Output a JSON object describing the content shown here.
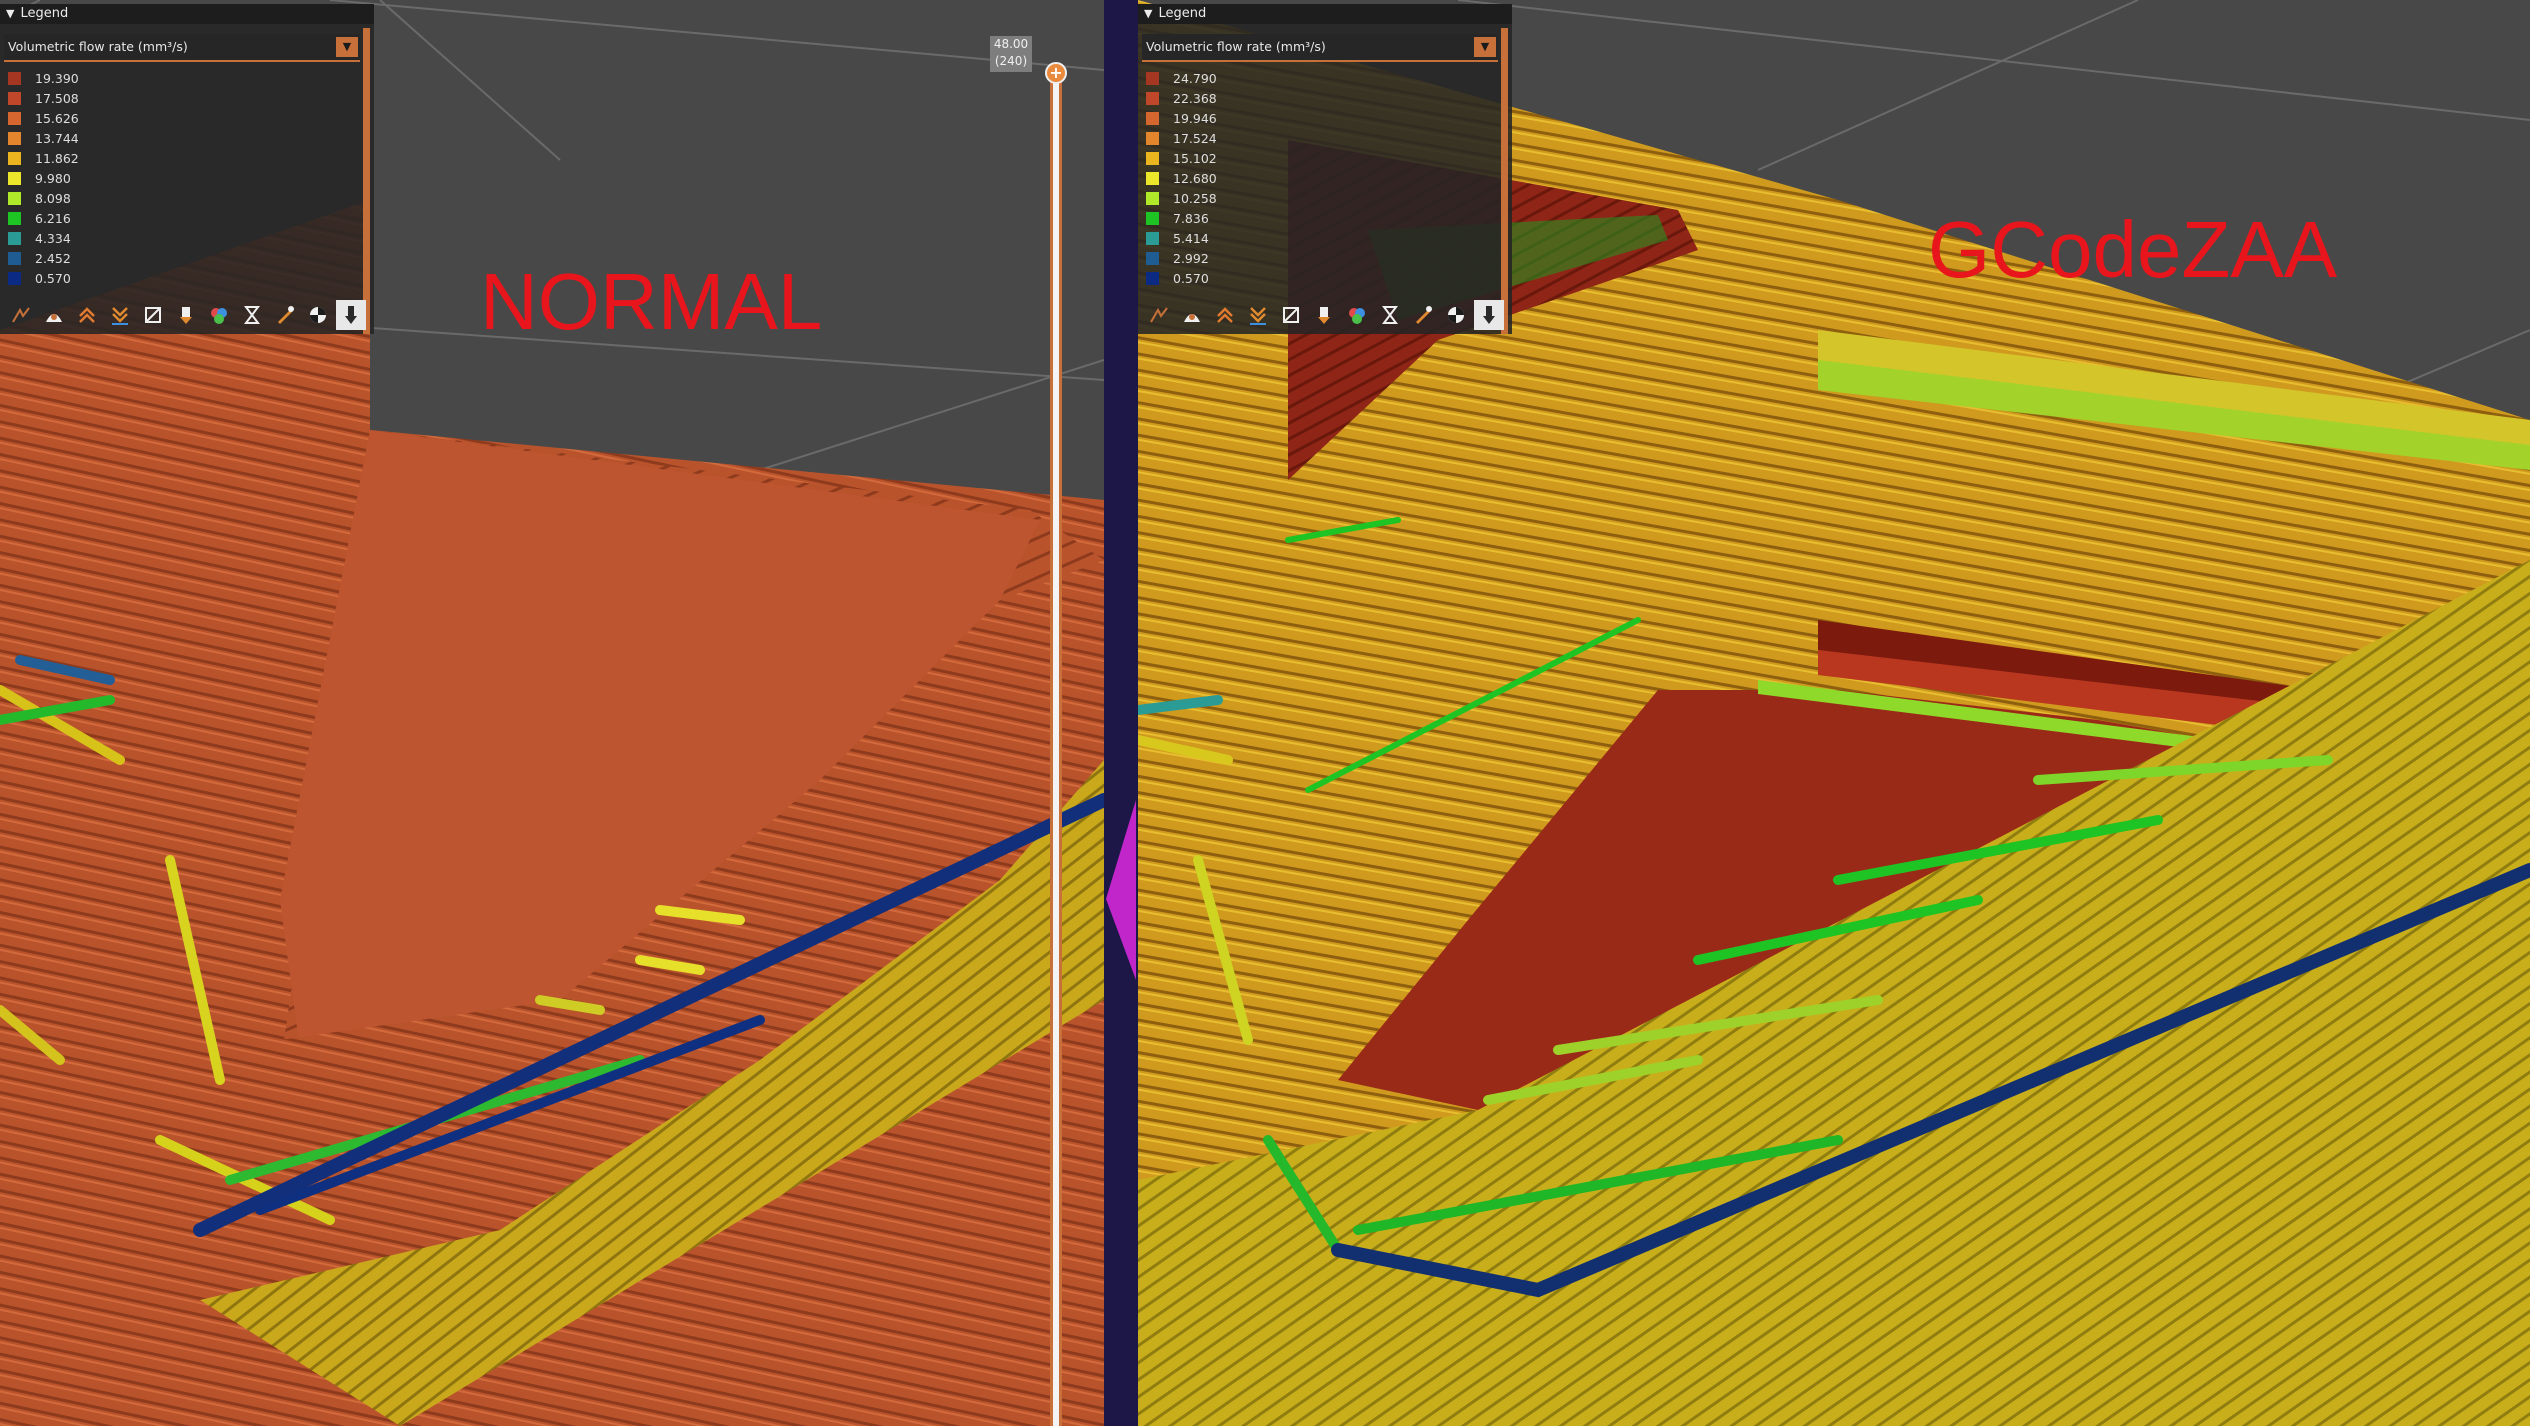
{
  "left_pane": {
    "overlay_label": "NORMAL",
    "legend": {
      "title": "Legend",
      "view_type": "Volumetric flow rate (mm³/s)",
      "items": [
        {
          "value": "19.390",
          "color": "#a53622"
        },
        {
          "value": "17.508",
          "color": "#c1472a"
        },
        {
          "value": "15.626",
          "color": "#d5662f"
        },
        {
          "value": "13.744",
          "color": "#e2852c"
        },
        {
          "value": "11.862",
          "color": "#ebb520"
        },
        {
          "value": "9.980",
          "color": "#ede72b"
        },
        {
          "value": "8.098",
          "color": "#b0e82a"
        },
        {
          "value": "6.216",
          "color": "#1ec423"
        },
        {
          "value": "4.334",
          "color": "#2b9c95"
        },
        {
          "value": "2.452",
          "color": "#1e5c92"
        },
        {
          "value": "0.570",
          "color": "#0b2a83"
        }
      ]
    },
    "slider": {
      "value": "48.00",
      "layer": "(240)"
    }
  },
  "right_pane": {
    "overlay_label": "GCodeZAA",
    "legend": {
      "title": "Legend",
      "view_type": "Volumetric flow rate (mm³/s)",
      "items": [
        {
          "value": "24.790",
          "color": "#a53622"
        },
        {
          "value": "22.368",
          "color": "#c1472a"
        },
        {
          "value": "19.946",
          "color": "#d5662f"
        },
        {
          "value": "17.524",
          "color": "#e2852c"
        },
        {
          "value": "15.102",
          "color": "#ebb520"
        },
        {
          "value": "12.680",
          "color": "#ede72b"
        },
        {
          "value": "10.258",
          "color": "#b0e82a"
        },
        {
          "value": "7.836",
          "color": "#1ec423"
        },
        {
          "value": "5.414",
          "color": "#2b9c95"
        },
        {
          "value": "2.992",
          "color": "#1e5c92"
        },
        {
          "value": "0.570",
          "color": "#0b2a83"
        }
      ]
    }
  },
  "toolbar_icons": [
    "travel-icon",
    "wipe-icon",
    "retractions-icon",
    "deretractions-icon",
    "seams-icon",
    "tool-changes-icon",
    "color-changes-icon",
    "pause-prints-icon",
    "custom-gcodes-icon",
    "center-of-gravity-icon",
    "shells-icon"
  ],
  "colors": {
    "accent": "#c8703a",
    "background": "#484848",
    "divider": "#1c1747",
    "overlay_text": "#e8161c"
  }
}
